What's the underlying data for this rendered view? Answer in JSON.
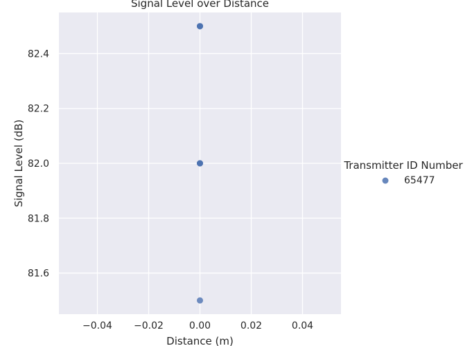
{
  "chart_data": {
    "type": "scatter",
    "title": "Signal Level over Distance",
    "xlabel": "Distance (m)",
    "ylabel": "Signal Level (dB)",
    "xlim": [
      -0.055,
      0.055
    ],
    "ylim": [
      81.45,
      82.55
    ],
    "x_ticks": [
      -0.04,
      -0.02,
      0.0,
      0.02,
      0.04
    ],
    "x_tick_labels": [
      "−0.04",
      "−0.02",
      "0.00",
      "0.02",
      "0.04"
    ],
    "y_ticks": [
      81.6,
      81.8,
      82.0,
      82.2,
      82.4
    ],
    "y_tick_labels": [
      "81.6",
      "81.8",
      "82.0",
      "82.2",
      "82.4"
    ],
    "grid": true,
    "legend": {
      "title": "Transmitter ID Number",
      "placement": "right"
    },
    "series": [
      {
        "name": "65477",
        "color": "#4c72b0",
        "points": [
          {
            "x": 0.0,
            "y": 82.5
          },
          {
            "x": 0.0,
            "y": 82.5
          },
          {
            "x": 0.0,
            "y": 82.5
          },
          {
            "x": 0.0,
            "y": 82.0
          },
          {
            "x": 0.0,
            "y": 82.0
          },
          {
            "x": 0.0,
            "y": 82.0
          },
          {
            "x": 0.0,
            "y": 81.5
          }
        ]
      }
    ]
  }
}
